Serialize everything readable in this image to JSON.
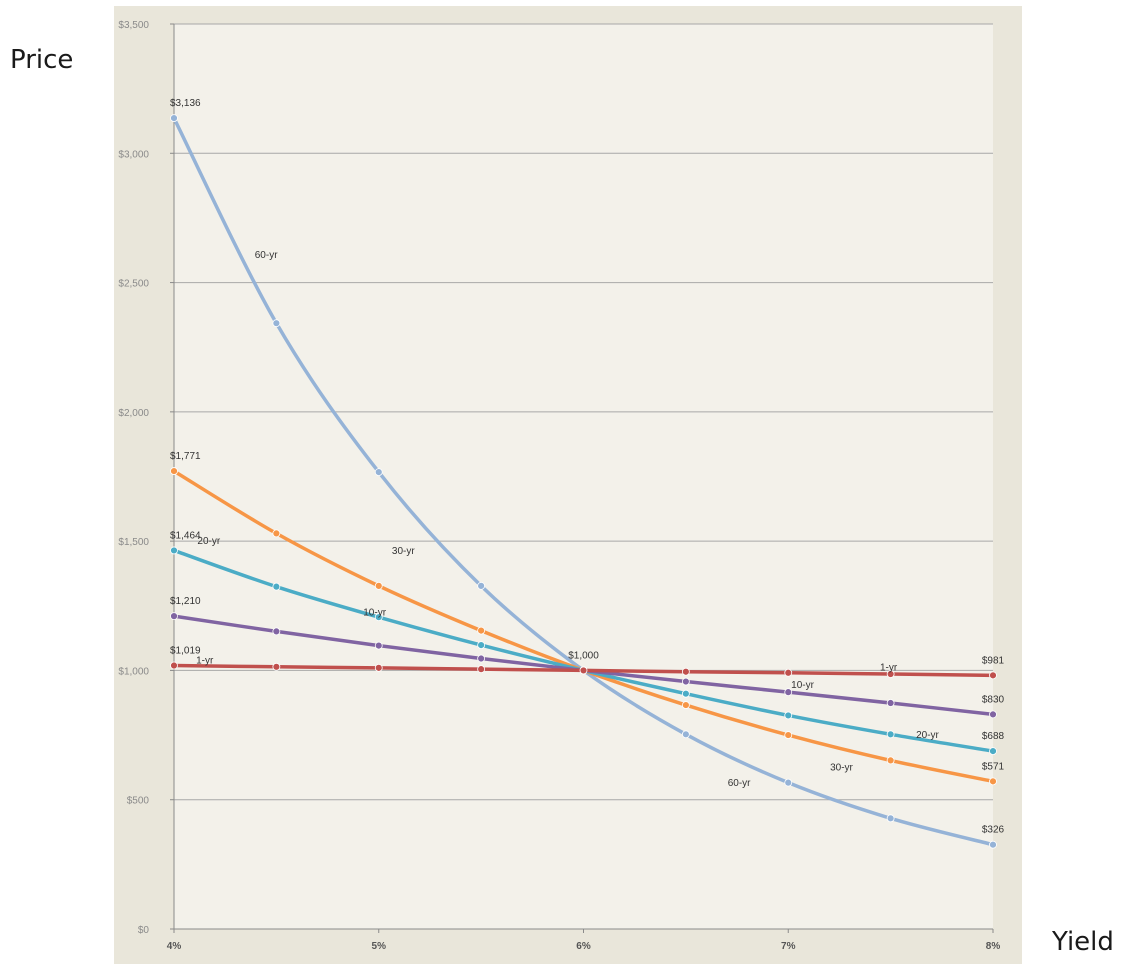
{
  "axis_titles": {
    "y": "Price",
    "x": "Yield"
  },
  "chart_data": {
    "type": "line",
    "title": "",
    "xlabel": "Yield",
    "ylabel": "Price",
    "x": [
      0.04,
      0.045,
      0.05,
      0.055,
      0.06,
      0.065,
      0.07,
      0.075,
      0.08
    ],
    "x_ticks": [
      0.04,
      0.05,
      0.06,
      0.07,
      0.08
    ],
    "x_tick_labels": [
      "4%",
      "5%",
      "6%",
      "7%",
      "8%"
    ],
    "xlim": [
      0.04,
      0.08
    ],
    "ylim": [
      0,
      3500
    ],
    "y_ticks": [
      0,
      500,
      1000,
      1500,
      2000,
      2500,
      3000,
      3500
    ],
    "y_tick_labels": [
      "$0",
      "$500",
      "$1,000",
      "$1,500",
      "$2,000",
      "$2,500",
      "$3,000",
      "$3,500"
    ],
    "grid": true,
    "legend": "none",
    "series": [
      {
        "name": "1-yr",
        "color": "#c0504d",
        "values": [
          1019,
          1014,
          1010,
          1005,
          1000,
          995,
          991,
          986,
          981
        ]
      },
      {
        "name": "10-yr",
        "color": "#8064a2",
        "values": [
          1210,
          1151,
          1096,
          1046,
          1000,
          957,
          916,
          874,
          830
        ]
      },
      {
        "name": "20-yr",
        "color": "#4bacc6",
        "values": [
          1464,
          1324,
          1206,
          1098,
          1000,
          910,
          826,
          753,
          688
        ]
      },
      {
        "name": "30-yr",
        "color": "#f79646",
        "values": [
          1771,
          1530,
          1327,
          1154,
          1000,
          866,
          750,
          652,
          571
        ]
      },
      {
        "name": "60-yr",
        "color": "#95b3d7",
        "values": [
          3136,
          2343,
          1767,
          1327,
          1000,
          753,
          566,
          428,
          326
        ]
      }
    ],
    "annotations": [
      {
        "text": "$3,136",
        "x": 0.04,
        "y": 3136,
        "pos": "above"
      },
      {
        "text": "$1,771",
        "x": 0.04,
        "y": 1771,
        "pos": "above"
      },
      {
        "text": "$1,464",
        "x": 0.04,
        "y": 1464,
        "pos": "above"
      },
      {
        "text": "$1,210",
        "x": 0.04,
        "y": 1210,
        "pos": "above"
      },
      {
        "text": "$1,019",
        "x": 0.04,
        "y": 1019,
        "pos": "above"
      },
      {
        "text": "$1,000",
        "x": 0.06,
        "y": 1000,
        "pos": "above"
      },
      {
        "text": "$981",
        "x": 0.08,
        "y": 981,
        "pos": "above"
      },
      {
        "text": "$830",
        "x": 0.08,
        "y": 830,
        "pos": "above"
      },
      {
        "text": "$688",
        "x": 0.08,
        "y": 688,
        "pos": "above"
      },
      {
        "text": "$571",
        "x": 0.08,
        "y": 571,
        "pos": "above"
      },
      {
        "text": "$326",
        "x": 0.08,
        "y": 326,
        "pos": "above"
      },
      {
        "text": "60-yr",
        "x": 0.0445,
        "y": 2610,
        "pos": "center"
      },
      {
        "text": "30-yr",
        "x": 0.0512,
        "y": 1465,
        "pos": "center"
      },
      {
        "text": "20-yr",
        "x": 0.0417,
        "y": 1505,
        "pos": "center"
      },
      {
        "text": "10-yr",
        "x": 0.0498,
        "y": 1227,
        "pos": "center"
      },
      {
        "text": "1-yr",
        "x": 0.0415,
        "y": 1042,
        "pos": "center"
      },
      {
        "text": "1-yr",
        "x": 0.0749,
        "y": 1016,
        "pos": "center"
      },
      {
        "text": "10-yr",
        "x": 0.0707,
        "y": 948,
        "pos": "center"
      },
      {
        "text": "20-yr",
        "x": 0.0768,
        "y": 754,
        "pos": "center"
      },
      {
        "text": "30-yr",
        "x": 0.0726,
        "y": 629,
        "pos": "center"
      },
      {
        "text": "60-yr",
        "x": 0.0676,
        "y": 569,
        "pos": "center"
      }
    ]
  }
}
